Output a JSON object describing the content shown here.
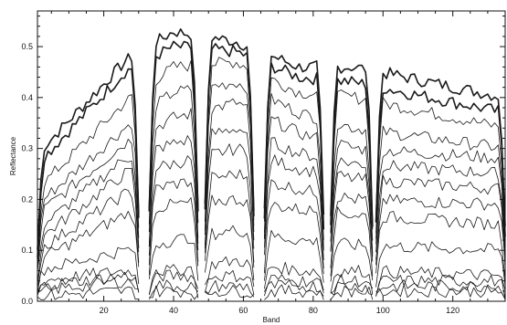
{
  "chart_data": {
    "type": "line",
    "title": "",
    "xlabel": "Band",
    "ylabel": "Reflectance",
    "xlim": [
      1,
      135
    ],
    "ylim": [
      0,
      0.57
    ],
    "grid": false,
    "x_ticks": [
      20,
      40,
      60,
      80,
      100,
      120
    ],
    "x_tick_labels": [
      "20",
      "40",
      "60",
      "80",
      "100",
      "120"
    ],
    "y_ticks": [
      0,
      0.1,
      0.2,
      0.3,
      0.4,
      0.5
    ],
    "y_tick_labels": [
      "0.0",
      "0.1",
      "0.2",
      "0.3",
      "0.4",
      "0.5"
    ],
    "segments": [
      {
        "x": [
          1,
          30
        ]
      },
      {
        "x": [
          33,
          47
        ]
      },
      {
        "x": [
          49,
          63
        ]
      },
      {
        "x": [
          66,
          83
        ]
      },
      {
        "x": [
          85,
          97
        ]
      },
      {
        "x": [
          98,
          135
        ]
      }
    ],
    "series": [
      {
        "levels": [
          0.29,
          0.47,
          0.53,
          0.51,
          0.46,
          0.46,
          0.4
        ],
        "thick": true
      },
      {
        "levels": [
          0.27,
          0.45,
          0.5,
          0.49,
          0.44,
          0.43,
          0.37
        ],
        "thick": true
      },
      {
        "levels": [
          0.22,
          0.39,
          0.46,
          0.47,
          0.41,
          0.4,
          0.34
        ],
        "thick": false
      },
      {
        "levels": [
          0.19,
          0.34,
          0.41,
          0.43,
          0.37,
          0.34,
          0.3
        ],
        "thick": false
      },
      {
        "levels": [
          0.17,
          0.31,
          0.36,
          0.39,
          0.33,
          0.3,
          0.28
        ],
        "thick": false
      },
      {
        "levels": [
          0.14,
          0.28,
          0.31,
          0.34,
          0.29,
          0.27,
          0.25
        ],
        "thick": false
      },
      {
        "levels": [
          0.12,
          0.25,
          0.27,
          0.3,
          0.26,
          0.24,
          0.22
        ],
        "thick": false
      },
      {
        "levels": [
          0.1,
          0.21,
          0.23,
          0.25,
          0.22,
          0.2,
          0.19
        ],
        "thick": false
      },
      {
        "levels": [
          0.08,
          0.17,
          0.19,
          0.2,
          0.18,
          0.17,
          0.15
        ],
        "thick": false
      },
      {
        "levels": [
          0.06,
          0.1,
          0.12,
          0.14,
          0.12,
          0.11,
          0.1
        ],
        "thick": false
      },
      {
        "levels": [
          0.04,
          0.06,
          0.06,
          0.08,
          0.06,
          0.06,
          0.05
        ],
        "thick": false
      },
      {
        "levels": [
          0.03,
          0.05,
          0.05,
          0.05,
          0.04,
          0.04,
          0.04
        ],
        "thick": false
      },
      {
        "levels": [
          0.02,
          0.04,
          0.03,
          0.03,
          0.03,
          0.03,
          0.03
        ],
        "thick": false
      },
      {
        "levels": [
          0.01,
          0.02,
          0.02,
          0.02,
          0.02,
          0.02,
          0.02
        ],
        "thick": false
      }
    ]
  }
}
